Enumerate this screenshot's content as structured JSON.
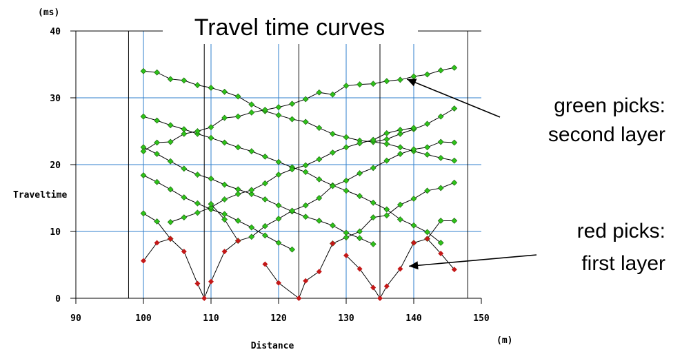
{
  "chart_data": {
    "type": "scatter",
    "title": "Travel time curves",
    "xlabel": "Distance",
    "ylabel": "Traveltime",
    "x_unit": "(m)",
    "y_unit": "(ms)",
    "xlim": [
      90,
      150
    ],
    "ylim": [
      0,
      40
    ],
    "x_ticks": [
      "90",
      "100",
      "110",
      "120",
      "130",
      "140",
      "150"
    ],
    "y_ticks": [
      "0",
      "10",
      "20",
      "30",
      "40"
    ],
    "grid": true,
    "grid_x_lines": [
      100,
      110,
      120,
      130,
      140
    ],
    "grid_y_lines": [
      10,
      20,
      30
    ],
    "source_lines": [
      97.8,
      109,
      123,
      135,
      148
    ],
    "colors": {
      "green": "#2fc21a",
      "red": "#c41818",
      "grid": "#2f7fcc",
      "line": "#000000"
    },
    "series": [
      {
        "color": "green",
        "points": [
          [
            100,
            34
          ],
          [
            102,
            33.8
          ],
          [
            104,
            32.8
          ],
          [
            106,
            32.6
          ],
          [
            108,
            31.9
          ],
          [
            110,
            31.5
          ],
          [
            112,
            30.9
          ],
          [
            114,
            30.2
          ],
          [
            116,
            29.0
          ],
          [
            118,
            28.0
          ],
          [
            120,
            27.4
          ],
          [
            122,
            26.8
          ],
          [
            124,
            26.4
          ],
          [
            126,
            25.5
          ],
          [
            128,
            24.6
          ],
          [
            130,
            24.1
          ],
          [
            132,
            23.6
          ],
          [
            134,
            23.4
          ],
          [
            136,
            23.1
          ],
          [
            138,
            22.6
          ],
          [
            140,
            22.0
          ],
          [
            142,
            21.5
          ],
          [
            144,
            21.0
          ],
          [
            146,
            20.6
          ]
        ]
      },
      {
        "color": "green",
        "points": [
          [
            100,
            22.6
          ],
          [
            102,
            21.6
          ],
          [
            104,
            20.5
          ],
          [
            106,
            19.4
          ],
          [
            108,
            18.5
          ],
          [
            110,
            17.9
          ],
          [
            112,
            17.0
          ],
          [
            114,
            16.3
          ],
          [
            116,
            15.6
          ],
          [
            118,
            14.8
          ],
          [
            120,
            13.9
          ],
          [
            122,
            13.0
          ],
          [
            124,
            12.2
          ],
          [
            126,
            11.6
          ],
          [
            128,
            10.9
          ],
          [
            130,
            9.8
          ],
          [
            132,
            9.0
          ],
          [
            134,
            8.1
          ]
        ]
      },
      {
        "color": "green",
        "points": [
          [
            134,
            23.4
          ],
          [
            136,
            23.8
          ],
          [
            138,
            24.6
          ],
          [
            140,
            25.3
          ],
          [
            142,
            26.1
          ],
          [
            144,
            27.2
          ],
          [
            146,
            28.4
          ]
        ]
      },
      {
        "color": "green",
        "points": [
          [
            100,
            27.2
          ],
          [
            102,
            26.6
          ],
          [
            104,
            25.9
          ],
          [
            106,
            25.3
          ],
          [
            108,
            24.6
          ],
          [
            110,
            24.0
          ],
          [
            112,
            23.3
          ],
          [
            114,
            22.6
          ],
          [
            116,
            22.0
          ],
          [
            118,
            21.2
          ],
          [
            120,
            20.4
          ],
          [
            122,
            19.6
          ],
          [
            124,
            18.9
          ],
          [
            126,
            17.8
          ],
          [
            128,
            16.9
          ],
          [
            130,
            16.1
          ],
          [
            132,
            15.3
          ],
          [
            134,
            14.3
          ],
          [
            136,
            13.3
          ],
          [
            138,
            11.8
          ],
          [
            140,
            10.9
          ],
          [
            142,
            9.9
          ],
          [
            144,
            8.3
          ]
        ]
      },
      {
        "color": "green",
        "points": [
          [
            100,
            18.4
          ],
          [
            102,
            17.4
          ],
          [
            104,
            16.3
          ],
          [
            106,
            15.1
          ],
          [
            108,
            14.2
          ],
          [
            110,
            13.3
          ],
          [
            112,
            12.6
          ],
          [
            114,
            11.6
          ],
          [
            116,
            10.6
          ],
          [
            118,
            9.4
          ],
          [
            120,
            8.3
          ],
          [
            122,
            7.3
          ]
        ]
      },
      {
        "color": "green",
        "points": [
          [
            100,
            12.7
          ],
          [
            102,
            11.5
          ],
          [
            104,
            8.9
          ]
        ]
      },
      {
        "color": "green",
        "points": [
          [
            104,
            11.4
          ],
          [
            106,
            12.1
          ],
          [
            108,
            12.8
          ],
          [
            110,
            13.6
          ],
          [
            112,
            14.8
          ],
          [
            114,
            15.6
          ],
          [
            116,
            16.2
          ],
          [
            118,
            17.2
          ],
          [
            120,
            18.5
          ],
          [
            122,
            19.3
          ],
          [
            124,
            19.9
          ],
          [
            126,
            20.8
          ],
          [
            128,
            21.8
          ],
          [
            130,
            22.6
          ],
          [
            132,
            23.2
          ],
          [
            134,
            23.7
          ],
          [
            136,
            24.7
          ],
          [
            138,
            25.2
          ],
          [
            140,
            25.5
          ]
        ]
      },
      {
        "color": "green",
        "points": [
          [
            100,
            22.0
          ],
          [
            102,
            23.3
          ],
          [
            104,
            23.4
          ],
          [
            106,
            24.6
          ],
          [
            108,
            25.0
          ],
          [
            110,
            25.6
          ],
          [
            112,
            27.0
          ],
          [
            114,
            27.2
          ],
          [
            116,
            27.8
          ],
          [
            118,
            28.2
          ],
          [
            120,
            28.6
          ],
          [
            122,
            29.1
          ],
          [
            124,
            29.8
          ],
          [
            126,
            30.8
          ],
          [
            128,
            30.5
          ],
          [
            130,
            31.8
          ],
          [
            132,
            32.0
          ],
          [
            134,
            32.1
          ],
          [
            136,
            32.5
          ],
          [
            138,
            32.7
          ],
          [
            140,
            33.2
          ],
          [
            142,
            33.5
          ],
          [
            144,
            34.1
          ],
          [
            146,
            34.5
          ]
        ]
      },
      {
        "color": "green",
        "points": [
          [
            110,
            14.1
          ],
          [
            112,
            11.8
          ],
          [
            114,
            8.6
          ],
          [
            116,
            9.2
          ],
          [
            118,
            10.8
          ],
          [
            120,
            11.9
          ],
          [
            122,
            13.1
          ],
          [
            124,
            13.9
          ],
          [
            126,
            15.0
          ],
          [
            128,
            16.8
          ],
          [
            130,
            17.6
          ],
          [
            132,
            18.7
          ],
          [
            134,
            19.5
          ],
          [
            136,
            20.6
          ],
          [
            138,
            21.6
          ],
          [
            140,
            22.3
          ],
          [
            142,
            22.6
          ],
          [
            144,
            23.4
          ],
          [
            146,
            23.3
          ]
        ]
      },
      {
        "color": "green",
        "points": [
          [
            128,
            8.2
          ],
          [
            130,
            9.1
          ],
          [
            132,
            10.0
          ],
          [
            134,
            12.1
          ],
          [
            136,
            12.4
          ],
          [
            138,
            14.0
          ],
          [
            140,
            14.9
          ],
          [
            142,
            16.1
          ],
          [
            144,
            16.5
          ],
          [
            146,
            17.3
          ]
        ]
      },
      {
        "color": "green",
        "points": [
          [
            140,
            8.3
          ],
          [
            142,
            8.9
          ],
          [
            144,
            11.6
          ],
          [
            146,
            11.6
          ]
        ]
      },
      {
        "color": "red",
        "points": [
          [
            100,
            5.6
          ],
          [
            102,
            8.3
          ],
          [
            104,
            8.9
          ]
        ]
      },
      {
        "color": "red",
        "points": [
          [
            104,
            8.9
          ],
          [
            106,
            7.0
          ],
          [
            108,
            2.2
          ],
          [
            109,
            0
          ],
          [
            110,
            2.5
          ],
          [
            112,
            7.0
          ],
          [
            114,
            8.6
          ]
        ]
      },
      {
        "color": "red",
        "points": [
          [
            118,
            5.1
          ],
          [
            120,
            2.3
          ],
          [
            123,
            0
          ],
          [
            124,
            2.6
          ],
          [
            126,
            4.0
          ],
          [
            128,
            8.2
          ]
        ]
      },
      {
        "color": "red",
        "points": [
          [
            130,
            6.4
          ],
          [
            132,
            4.4
          ],
          [
            134,
            1.6
          ],
          [
            135,
            0
          ],
          [
            136,
            1.8
          ],
          [
            138,
            4.4
          ],
          [
            140,
            8.3
          ]
        ]
      },
      {
        "color": "red",
        "points": [
          [
            142,
            8.9
          ],
          [
            144,
            6.7
          ],
          [
            146,
            4.3
          ]
        ]
      }
    ],
    "annotations": [
      {
        "lines": [
          "green picks:",
          "second layer"
        ],
        "points_to": [
          139,
          32.8
        ]
      },
      {
        "lines": [
          "red picks:",
          "first layer"
        ],
        "points_to": [
          139.3,
          4.8
        ]
      }
    ]
  }
}
